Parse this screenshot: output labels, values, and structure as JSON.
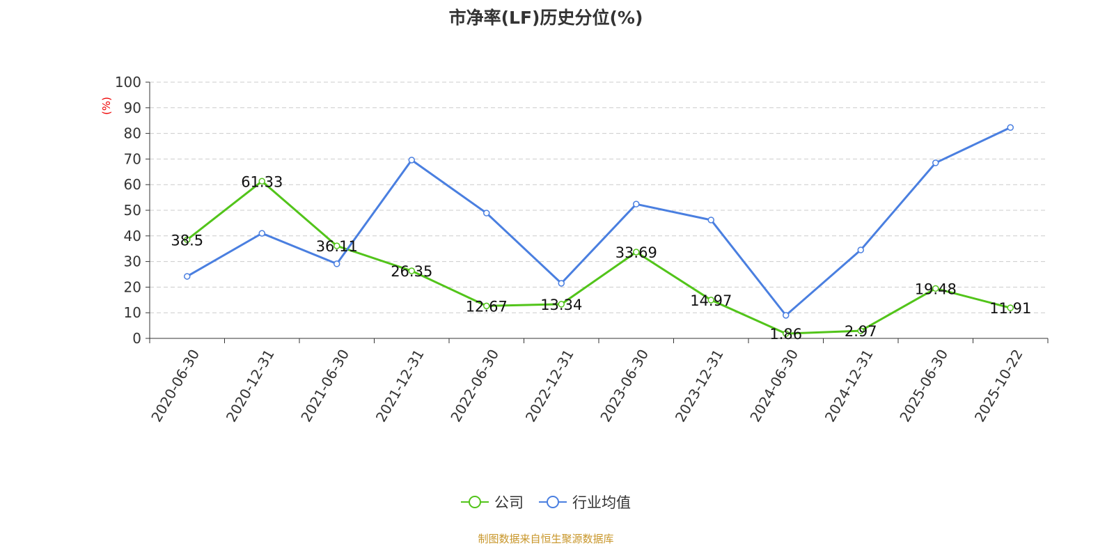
{
  "chart_data": {
    "type": "line",
    "title": "市净率(LF)历史分位(%)",
    "ylabel": "(%)",
    "xlabel": "",
    "ylim": [
      0,
      100
    ],
    "yticks": [
      0,
      10,
      20,
      30,
      40,
      50,
      60,
      70,
      80,
      90,
      100
    ],
    "grid": true,
    "legend_position": "bottom",
    "categories": [
      "2020-06-30",
      "2020-12-31",
      "2021-06-30",
      "2021-12-31",
      "2022-06-30",
      "2022-12-31",
      "2023-06-30",
      "2023-12-31",
      "2024-06-30",
      "2024-12-31",
      "2025-06-30",
      "2025-10-22"
    ],
    "series": [
      {
        "name": "公司",
        "color": "#52c41a",
        "labels": true,
        "values": [
          38.5,
          61.33,
          36.11,
          26.35,
          12.67,
          13.34,
          33.69,
          14.97,
          1.86,
          2.97,
          19.48,
          11.91
        ]
      },
      {
        "name": "行业均值",
        "color": "#4a7fe0",
        "labels": false,
        "values": [
          24.2,
          41.0,
          29.1,
          69.6,
          48.9,
          21.5,
          52.4,
          46.2,
          9.0,
          34.5,
          68.5,
          82.3
        ]
      }
    ]
  },
  "source": "制图数据来自恒生聚源数据库"
}
